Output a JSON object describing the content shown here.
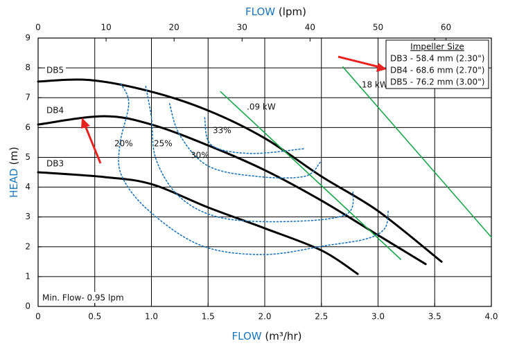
{
  "chart_data": {
    "type": "line",
    "x_label": "FLOW",
    "x_unit": "(m³/hr)",
    "x2_label": "FLOW",
    "x2_unit": "(lpm)",
    "y_label": "HEAD",
    "y_unit": "(m)",
    "xlim": [
      0,
      4.0
    ],
    "xticks": [
      0,
      0.5,
      {
        "value": 1,
        "label": "1.0"
      },
      1.5,
      {
        "value": 2,
        "label": "2.0"
      },
      2.5,
      {
        "value": 3,
        "label": "3.0"
      },
      3.5,
      {
        "value": 4,
        "label": "4.0"
      }
    ],
    "x2lim": [
      0,
      66.67
    ],
    "x2ticks": [
      0,
      10,
      20,
      30,
      40,
      50,
      60
    ],
    "ylim": [
      0,
      9
    ],
    "yticks": [
      0,
      1,
      2,
      3,
      4,
      5,
      6,
      7,
      8,
      9
    ],
    "grid": true,
    "series": [
      {
        "name": "DB5",
        "color": "#000000",
        "kind": "pump",
        "x": [
          0,
          0.46,
          1.0,
          1.5,
          2.0,
          2.5,
          3.0,
          3.56
        ],
        "values": [
          7.54,
          7.59,
          7.2,
          6.57,
          5.64,
          4.36,
          3.2,
          1.5
        ]
      },
      {
        "name": "DB4",
        "color": "#000000",
        "kind": "pump",
        "x": [
          0,
          0.58,
          1.0,
          1.5,
          2.0,
          2.5,
          3.0,
          3.42
        ],
        "values": [
          6.1,
          6.38,
          6.1,
          5.4,
          4.57,
          3.55,
          2.39,
          1.42
        ]
      },
      {
        "name": "DB3",
        "color": "#000000",
        "kind": "pump",
        "x": [
          0,
          0.58,
          1.0,
          1.5,
          2.0,
          2.5,
          2.82
        ],
        "values": [
          4.5,
          4.34,
          4.1,
          3.32,
          2.62,
          1.88,
          1.09
        ]
      },
      {
        "name": "20%",
        "color": "#1b75bb",
        "kind": "efficiency",
        "x": [
          0.73,
          0.8,
          0.72,
          0.74,
          0.98,
          1.44,
          1.99,
          2.54,
          2.9,
          3.06,
          3.09
        ],
        "values": [
          7.47,
          6.8,
          5.4,
          4.36,
          3.2,
          2.04,
          1.74,
          2.04,
          2.27,
          2.62,
          3.2
        ]
      },
      {
        "name": "25%",
        "color": "#1b75bb",
        "kind": "efficiency",
        "x": [
          0.95,
          1.0,
          1.04,
          1.25,
          1.62,
          2.23,
          2.72,
          2.78
        ],
        "values": [
          7.38,
          6.33,
          4.94,
          3.67,
          2.97,
          2.85,
          3.09,
          3.9
        ]
      },
      {
        "name": "30%",
        "color": "#1b75bb",
        "kind": "efficiency",
        "x": [
          1.16,
          1.25,
          1.5,
          1.93,
          2.35,
          2.49
        ],
        "values": [
          6.8,
          5.75,
          4.71,
          4.36,
          4.36,
          4.83
        ]
      },
      {
        "name": "33%",
        "color": "#1b75bb",
        "kind": "efficiency",
        "x": [
          1.47,
          1.53,
          1.87,
          2.35
        ],
        "values": [
          6.33,
          5.41,
          5.13,
          5.29
        ]
      },
      {
        "name": ".09 kW",
        "color": "#1aa64a",
        "kind": "power",
        "x": [
          1.61,
          3.2
        ],
        "values": [
          7.2,
          1.58
        ]
      },
      {
        "name": ".18 kW",
        "color": "#1aa64a",
        "kind": "power",
        "x": [
          2.69,
          4.0
        ],
        "values": [
          8.03,
          2.32
        ]
      }
    ],
    "legend": {
      "title": "Impeller Size",
      "entries": [
        "DB3 - 58.4 mm (2.30\")",
        "DB4 - 68.6 mm (2.70\")",
        "DB5 - 76.2 mm (3.00\")"
      ]
    },
    "annotation": "Min. Flow-  0.95 lpm"
  }
}
